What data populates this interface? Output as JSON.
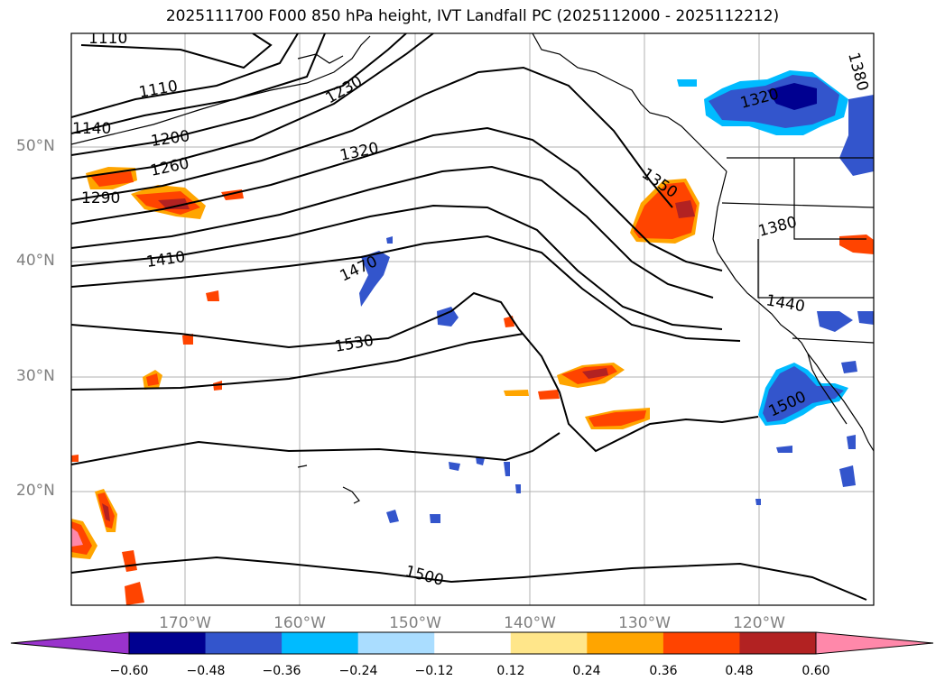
{
  "title": "2025111700 F000 850 hPa height, IVT Landfall PC (2025112000 - 2025112212)",
  "axes": {
    "lat_labels": [
      "50°N",
      "40°N",
      "30°N",
      "20°N"
    ],
    "lon_labels": [
      "170°W",
      "160°W",
      "150°W",
      "140°W",
      "130°W",
      "120°W"
    ]
  },
  "contour_labels": [
    "1110",
    "1110",
    "1140",
    "1200",
    "1260",
    "1290",
    "1230",
    "1320",
    "1410",
    "1470",
    "1530",
    "1350",
    "1320",
    "1380",
    "1380",
    "1440",
    "1500",
    "1500"
  ],
  "colorbar": {
    "tick_labels": [
      "−0.60",
      "−0.48",
      "−0.36",
      "−0.24",
      "−0.12",
      "0.12",
      "0.24",
      "0.36",
      "0.48",
      "0.60"
    ],
    "colors": [
      "#9933cc",
      "#000090",
      "#3355cc",
      "#00bbff",
      "#aaddff",
      "#ffffff",
      "#ffe68a",
      "#ffa500",
      "#ff4400",
      "#b22222",
      "#ff88aa"
    ]
  },
  "field_colors": {
    "neg_strong": "#000090",
    "neg_mid": "#3355cc",
    "neg_weak": "#00bbff",
    "pos_weak": "#ffa500",
    "pos_mid": "#ff4400",
    "pos_strong": "#b22222"
  }
}
